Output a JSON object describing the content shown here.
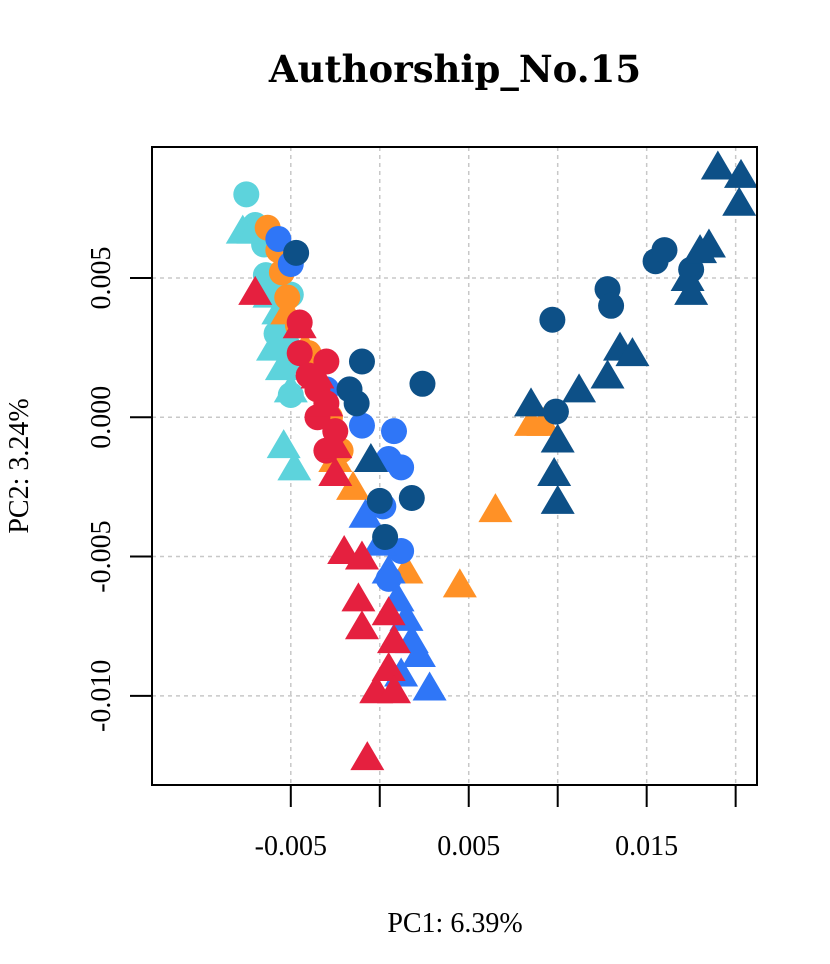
{
  "chart_data": {
    "type": "scatter",
    "title": "Authorship_No.15",
    "xlabel": "PC1: 6.39%",
    "ylabel": "PC2: 3.24%",
    "xlim": [
      -0.0128,
      0.0212
    ],
    "ylim": [
      -0.0132,
      0.0097
    ],
    "xticks": [
      -0.005,
      0.0,
      0.005,
      0.01,
      0.015,
      0.02
    ],
    "xtick_labels": [
      "-0.005",
      "",
      "0.005",
      "",
      "0.015",
      ""
    ],
    "yticks": [
      -0.01,
      -0.005,
      0.0,
      0.005
    ],
    "ytick_labels": [
      "-0.010",
      "-0.005",
      "0.000",
      "0.005"
    ],
    "grid": true,
    "series": [
      {
        "color": "#5DD3DC",
        "points": [
          {
            "x": -0.0075,
            "y": 0.008,
            "shape": "circle"
          },
          {
            "x": -0.007,
            "y": 0.0069,
            "shape": "circle"
          },
          {
            "x": -0.0065,
            "y": 0.0062,
            "shape": "circle"
          },
          {
            "x": -0.0064,
            "y": 0.0051,
            "shape": "circle"
          },
          {
            "x": -0.006,
            "y": 0.0045,
            "shape": "circle"
          },
          {
            "x": -0.005,
            "y": 0.0044,
            "shape": "circle"
          },
          {
            "x": -0.0058,
            "y": 0.003,
            "shape": "circle"
          },
          {
            "x": -0.0052,
            "y": 0.0026,
            "shape": "circle"
          },
          {
            "x": -0.0045,
            "y": 0.002,
            "shape": "circle"
          },
          {
            "x": -0.005,
            "y": 0.0008,
            "shape": "circle"
          },
          {
            "x": -0.0077,
            "y": 0.0067,
            "shape": "triangle"
          },
          {
            "x": -0.0071,
            "y": 0.0067,
            "shape": "triangle"
          },
          {
            "x": -0.0062,
            "y": 0.0044,
            "shape": "triangle"
          },
          {
            "x": -0.0057,
            "y": 0.0038,
            "shape": "triangle"
          },
          {
            "x": -0.006,
            "y": 0.0025,
            "shape": "triangle"
          },
          {
            "x": -0.0055,
            "y": 0.0018,
            "shape": "triangle"
          },
          {
            "x": -0.005,
            "y": 0.001,
            "shape": "triangle"
          },
          {
            "x": -0.0054,
            "y": -0.001,
            "shape": "triangle"
          },
          {
            "x": -0.0048,
            "y": -0.0018,
            "shape": "triangle"
          }
        ]
      },
      {
        "color": "#FF9126",
        "points": [
          {
            "x": -0.0063,
            "y": 0.0068,
            "shape": "circle"
          },
          {
            "x": -0.0057,
            "y": 0.006,
            "shape": "circle"
          },
          {
            "x": -0.0055,
            "y": 0.0052,
            "shape": "circle"
          },
          {
            "x": -0.0052,
            "y": 0.0043,
            "shape": "circle"
          },
          {
            "x": -0.0046,
            "y": 0.0033,
            "shape": "circle"
          },
          {
            "x": -0.004,
            "y": 0.0023,
            "shape": "circle"
          },
          {
            "x": -0.0035,
            "y": 0.001,
            "shape": "circle"
          },
          {
            "x": -0.0028,
            "y": 0.0,
            "shape": "circle"
          },
          {
            "x": -0.0022,
            "y": -0.0012,
            "shape": "circle"
          },
          {
            "x": -0.0052,
            "y": 0.0038,
            "shape": "triangle"
          },
          {
            "x": -0.0042,
            "y": 0.0025,
            "shape": "triangle"
          },
          {
            "x": -0.0025,
            "y": -0.0015,
            "shape": "triangle"
          },
          {
            "x": -0.0015,
            "y": -0.0025,
            "shape": "triangle"
          },
          {
            "x": 0.0015,
            "y": -0.0055,
            "shape": "triangle"
          },
          {
            "x": 0.0045,
            "y": -0.006,
            "shape": "triangle"
          },
          {
            "x": 0.0065,
            "y": -0.0033,
            "shape": "triangle"
          },
          {
            "x": 0.0085,
            "y": -0.0002,
            "shape": "triangle"
          },
          {
            "x": 0.0092,
            "y": -0.0002,
            "shape": "triangle"
          }
        ]
      },
      {
        "color": "#2F76F7",
        "points": [
          {
            "x": -0.0057,
            "y": 0.0064,
            "shape": "circle"
          },
          {
            "x": -0.005,
            "y": 0.0055,
            "shape": "circle"
          },
          {
            "x": -0.003,
            "y": 0.001,
            "shape": "circle"
          },
          {
            "x": -0.001,
            "y": -0.0003,
            "shape": "circle"
          },
          {
            "x": 0.0008,
            "y": -0.0005,
            "shape": "circle"
          },
          {
            "x": 0.0005,
            "y": -0.0015,
            "shape": "circle"
          },
          {
            "x": 0.0012,
            "y": -0.0018,
            "shape": "circle"
          },
          {
            "x": 0.0002,
            "y": -0.0032,
            "shape": "circle"
          },
          {
            "x": 0.0012,
            "y": -0.0048,
            "shape": "circle"
          },
          {
            "x": 0.0005,
            "y": -0.0058,
            "shape": "circle"
          },
          {
            "x": -0.0008,
            "y": -0.0035,
            "shape": "triangle"
          },
          {
            "x": 0.0,
            "y": -0.0045,
            "shape": "triangle"
          },
          {
            "x": 0.0005,
            "y": -0.0055,
            "shape": "triangle"
          },
          {
            "x": 0.001,
            "y": -0.0065,
            "shape": "triangle"
          },
          {
            "x": 0.0015,
            "y": -0.0072,
            "shape": "triangle"
          },
          {
            "x": 0.0018,
            "y": -0.008,
            "shape": "triangle"
          },
          {
            "x": 0.0022,
            "y": -0.0085,
            "shape": "triangle"
          },
          {
            "x": 0.0012,
            "y": -0.0092,
            "shape": "triangle"
          },
          {
            "x": 0.0028,
            "y": -0.0097,
            "shape": "triangle"
          }
        ]
      },
      {
        "color": "#0D5087",
        "points": [
          {
            "x": -0.0047,
            "y": 0.0059,
            "shape": "circle"
          },
          {
            "x": -0.001,
            "y": 0.002,
            "shape": "circle"
          },
          {
            "x": -0.0017,
            "y": 0.001,
            "shape": "circle"
          },
          {
            "x": -0.0013,
            "y": 0.0005,
            "shape": "circle"
          },
          {
            "x": 0.0024,
            "y": 0.0012,
            "shape": "circle"
          },
          {
            "x": 0.0,
            "y": -0.003,
            "shape": "circle"
          },
          {
            "x": 0.0018,
            "y": -0.0029,
            "shape": "circle"
          },
          {
            "x": 0.0003,
            "y": -0.0043,
            "shape": "circle"
          },
          {
            "x": 0.0097,
            "y": 0.0035,
            "shape": "circle"
          },
          {
            "x": 0.0099,
            "y": 0.0002,
            "shape": "circle"
          },
          {
            "x": 0.0128,
            "y": 0.0046,
            "shape": "circle"
          },
          {
            "x": 0.013,
            "y": 0.004,
            "shape": "circle"
          },
          {
            "x": 0.0155,
            "y": 0.0056,
            "shape": "circle"
          },
          {
            "x": 0.016,
            "y": 0.006,
            "shape": "circle"
          },
          {
            "x": 0.0175,
            "y": 0.0053,
            "shape": "circle"
          },
          {
            "x": -0.0005,
            "y": -0.0015,
            "shape": "triangle"
          },
          {
            "x": 0.0085,
            "y": 0.0005,
            "shape": "triangle"
          },
          {
            "x": 0.01,
            "y": -0.0008,
            "shape": "triangle"
          },
          {
            "x": 0.0098,
            "y": -0.002,
            "shape": "triangle"
          },
          {
            "x": 0.01,
            "y": -0.003,
            "shape": "triangle"
          },
          {
            "x": 0.0112,
            "y": 0.001,
            "shape": "triangle"
          },
          {
            "x": 0.0128,
            "y": 0.0015,
            "shape": "triangle"
          },
          {
            "x": 0.0135,
            "y": 0.0025,
            "shape": "triangle"
          },
          {
            "x": 0.0142,
            "y": 0.0023,
            "shape": "triangle"
          },
          {
            "x": 0.0173,
            "y": 0.005,
            "shape": "triangle"
          },
          {
            "x": 0.0175,
            "y": 0.0045,
            "shape": "triangle"
          },
          {
            "x": 0.018,
            "y": 0.006,
            "shape": "triangle"
          },
          {
            "x": 0.0185,
            "y": 0.0062,
            "shape": "triangle"
          },
          {
            "x": 0.019,
            "y": 0.009,
            "shape": "triangle"
          },
          {
            "x": 0.0202,
            "y": 0.0077,
            "shape": "triangle"
          },
          {
            "x": 0.0237,
            "y": 0.0087,
            "shape": "triangle"
          }
        ]
      },
      {
        "color": "#E5203F",
        "points": [
          {
            "x": -0.0045,
            "y": 0.0034,
            "shape": "circle"
          },
          {
            "x": -0.0045,
            "y": 0.0023,
            "shape": "circle"
          },
          {
            "x": -0.003,
            "y": 0.002,
            "shape": "circle"
          },
          {
            "x": -0.004,
            "y": 0.0015,
            "shape": "circle"
          },
          {
            "x": -0.0035,
            "y": 0.001,
            "shape": "circle"
          },
          {
            "x": -0.003,
            "y": 0.0005,
            "shape": "circle"
          },
          {
            "x": -0.0035,
            "y": 0.0,
            "shape": "circle"
          },
          {
            "x": -0.0025,
            "y": -0.0005,
            "shape": "circle"
          },
          {
            "x": -0.003,
            "y": -0.0012,
            "shape": "circle"
          },
          {
            "x": -0.007,
            "y": 0.0045,
            "shape": "triangle"
          },
          {
            "x": -0.0045,
            "y": 0.0033,
            "shape": "triangle"
          },
          {
            "x": -0.0035,
            "y": 0.0015,
            "shape": "triangle"
          },
          {
            "x": -0.003,
            "y": 0.0005,
            "shape": "triangle"
          },
          {
            "x": -0.0025,
            "y": -0.001,
            "shape": "triangle"
          },
          {
            "x": -0.0025,
            "y": -0.002,
            "shape": "triangle"
          },
          {
            "x": -0.002,
            "y": -0.0048,
            "shape": "triangle"
          },
          {
            "x": -0.001,
            "y": -0.005,
            "shape": "triangle"
          },
          {
            "x": -0.0012,
            "y": -0.0065,
            "shape": "triangle"
          },
          {
            "x": -0.001,
            "y": -0.0075,
            "shape": "triangle"
          },
          {
            "x": 0.0005,
            "y": -0.007,
            "shape": "triangle"
          },
          {
            "x": 0.0008,
            "y": -0.008,
            "shape": "triangle"
          },
          {
            "x": 0.0005,
            "y": -0.009,
            "shape": "triangle"
          },
          {
            "x": -0.0002,
            "y": -0.0098,
            "shape": "triangle"
          },
          {
            "x": 0.0008,
            "y": -0.0098,
            "shape": "triangle"
          },
          {
            "x": -0.0007,
            "y": -0.0122,
            "shape": "triangle"
          }
        ]
      }
    ]
  }
}
